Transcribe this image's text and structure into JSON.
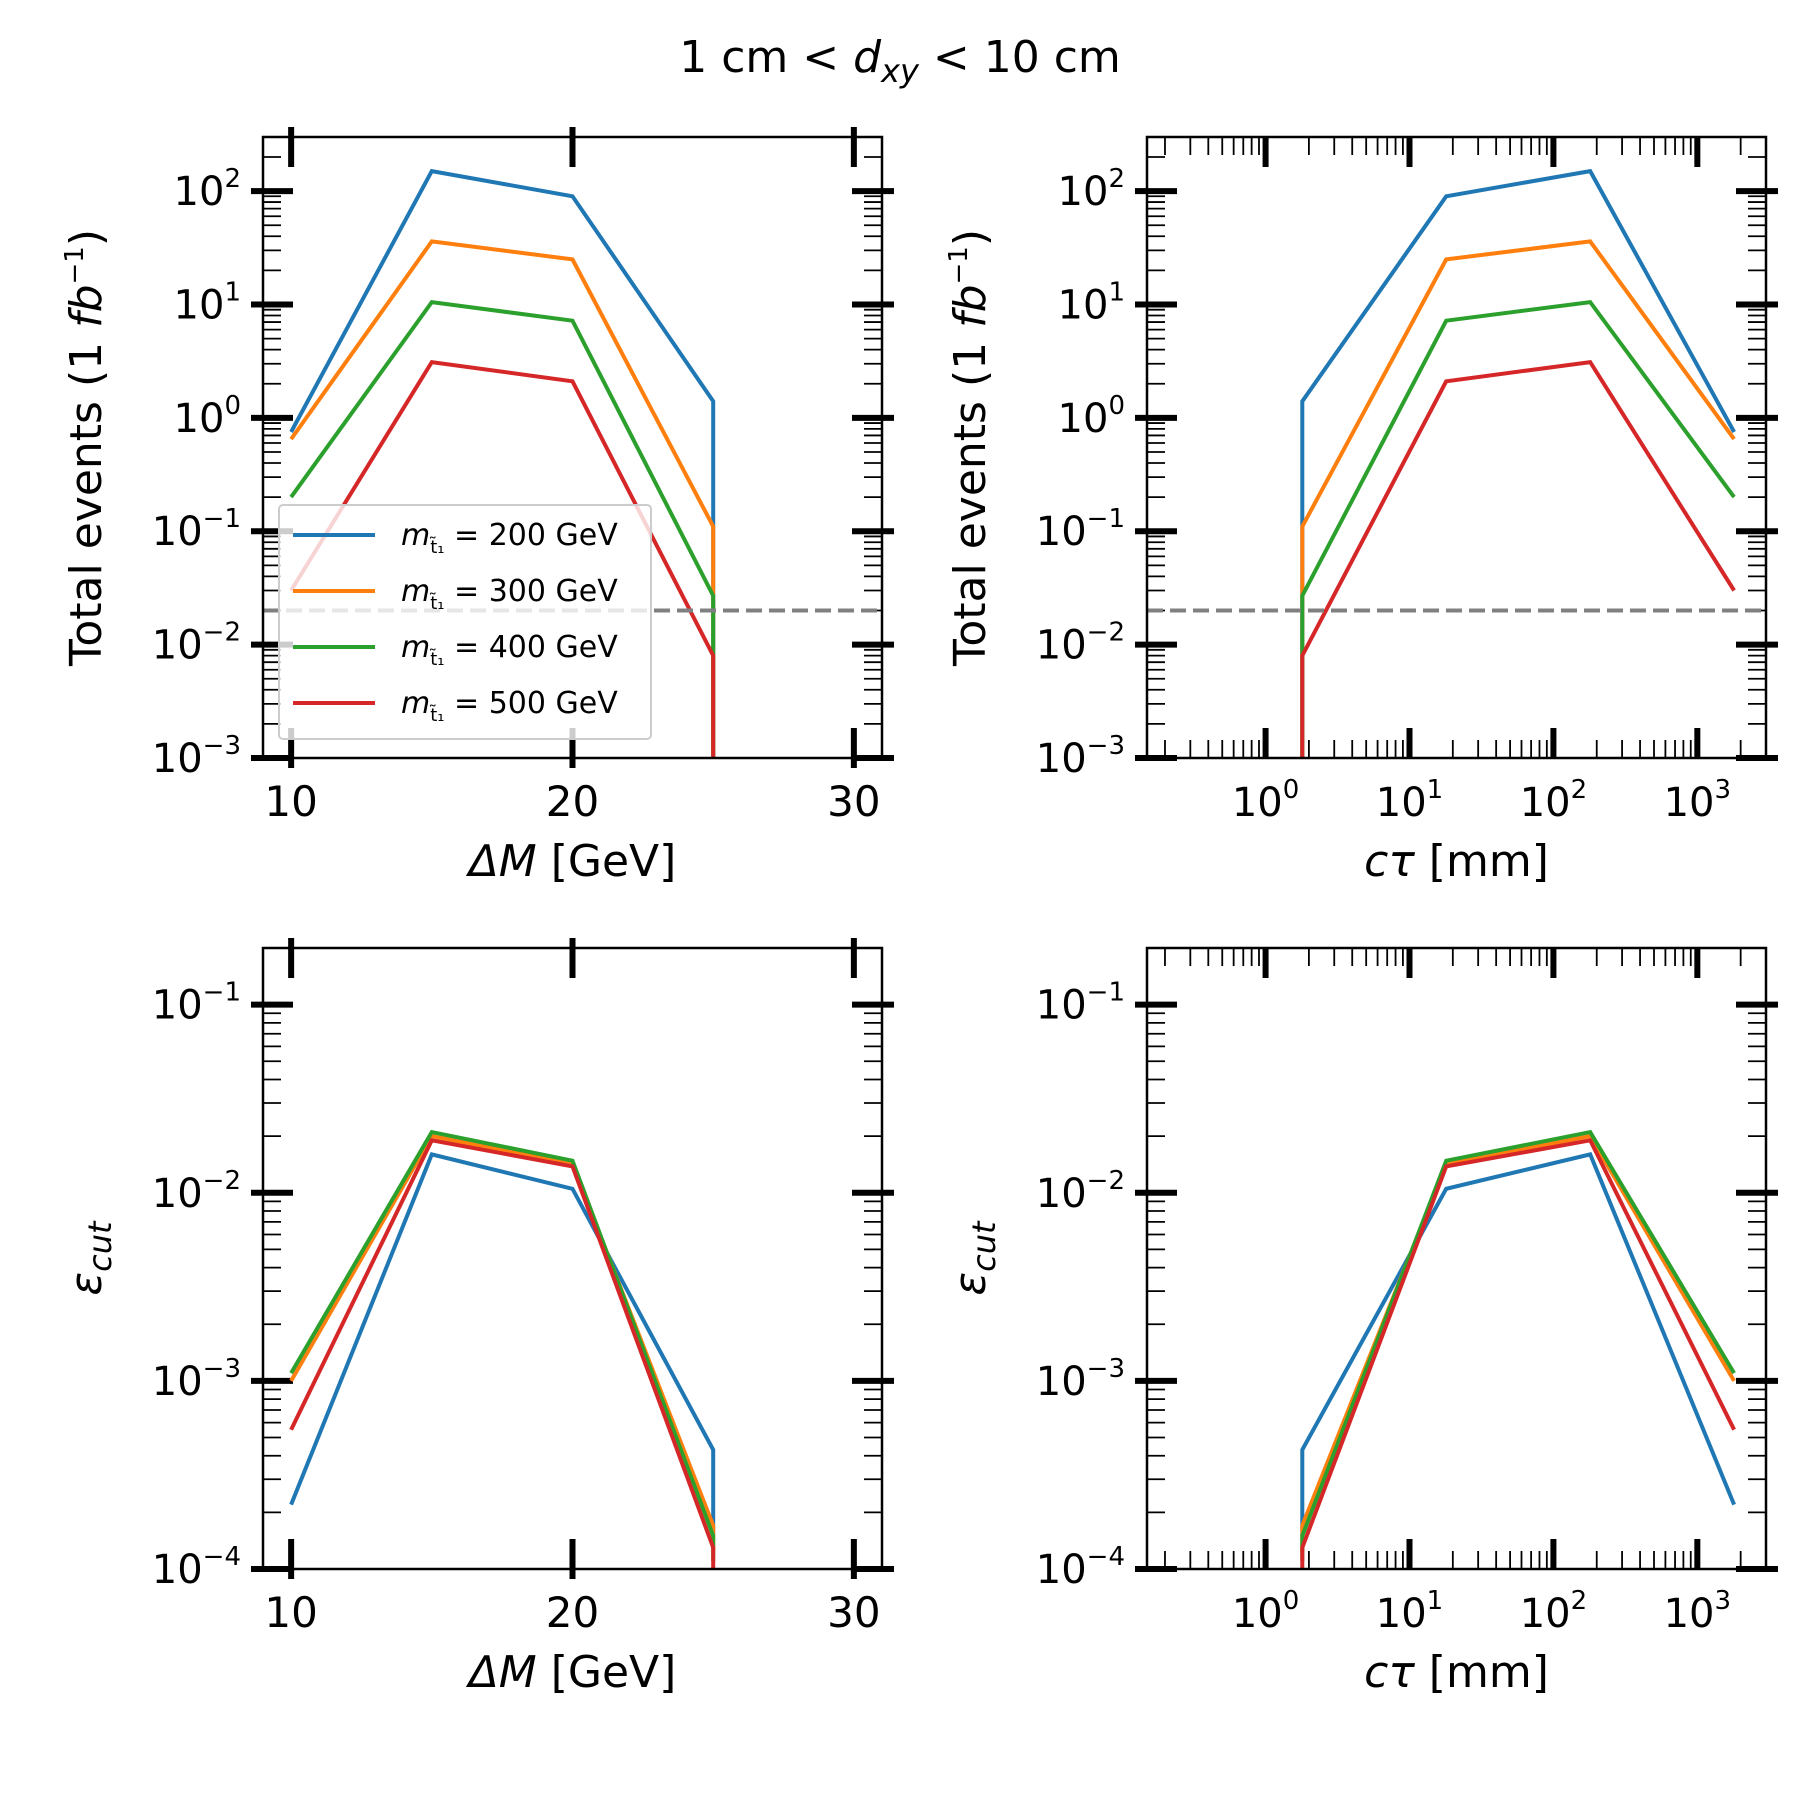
{
  "figure": {
    "title_pre": "1 cm < ",
    "title_var": "d",
    "title_sub": "xy",
    "title_post": " < 10 cm"
  },
  "legend": {
    "m_symbol": "m",
    "m_subscript": "t̃₁",
    "entries": [
      {
        "label": " = 200 GeV",
        "color": "#1f77b4"
      },
      {
        "label": " = 300 GeV",
        "color": "#ff7f0e"
      },
      {
        "label": " = 400 GeV",
        "color": "#2ca02c"
      },
      {
        "label": " = 500 GeV",
        "color": "#d62728"
      }
    ]
  },
  "reference_line": {
    "value": 0.02,
    "color": "#808080",
    "style": "dashed"
  },
  "chart_data": [
    {
      "panel": "top-left",
      "type": "line",
      "xscale": "linear",
      "yscale": "log",
      "xlabel_var": "ΔM",
      "xlabel_unit": " [GeV]",
      "ylabel_text": "Total events (1 ",
      "ylabel_var": "fb",
      "ylabel_sup": "−1",
      "ylabel_close": ")",
      "xlim": [
        9,
        31
      ],
      "ylim": [
        0.001,
        300
      ],
      "xticks": [
        10,
        20,
        30
      ],
      "xticklabels": [
        "10",
        "20",
        "30"
      ],
      "yticks": [
        0.001,
        0.01,
        0.1,
        1,
        10,
        100
      ],
      "ytick_exponents": [
        "−3",
        "−2",
        "−1",
        "0",
        "1",
        "2"
      ],
      "ytick_base": "10",
      "legend": "lower-left",
      "hline": 0.02,
      "x": [
        10,
        15,
        20,
        25,
        25
      ],
      "series": [
        {
          "name": "m = 200 GeV",
          "color": "#1f77b4",
          "values": [
            0.75,
            150,
            90,
            1.4,
            0.0005
          ]
        },
        {
          "name": "m = 300 GeV",
          "color": "#ff7f0e",
          "values": [
            0.65,
            36,
            25,
            0.11,
            0.0005
          ]
        },
        {
          "name": "m = 400 GeV",
          "color": "#2ca02c",
          "values": [
            0.2,
            10.5,
            7.2,
            0.027,
            0.0005
          ]
        },
        {
          "name": "m = 500 GeV",
          "color": "#d62728",
          "values": [
            0.03,
            3.1,
            2.1,
            0.008,
            0.0005
          ]
        }
      ]
    },
    {
      "panel": "top-right",
      "type": "line",
      "xscale": "log",
      "yscale": "log",
      "xlabel_var": "cτ",
      "xlabel_unit": " [mm]",
      "ylabel_text": "Total events (1 ",
      "ylabel_var": "fb",
      "ylabel_sup": "−1",
      "ylabel_close": ")",
      "xlim": [
        0.15,
        3000
      ],
      "ylim": [
        0.001,
        300
      ],
      "xticks": [
        1,
        10,
        100,
        1000
      ],
      "xtick_exponents": [
        "0",
        "1",
        "2",
        "3"
      ],
      "xtick_base": "10",
      "yticks": [
        0.001,
        0.01,
        0.1,
        1,
        10,
        100
      ],
      "ytick_exponents": [
        "−3",
        "−2",
        "−1",
        "0",
        "1",
        "2"
      ],
      "ytick_base": "10",
      "hline": 0.02,
      "x": [
        1.8,
        1.8,
        18,
        180,
        1800
      ],
      "series": [
        {
          "name": "m = 200 GeV",
          "color": "#1f77b4",
          "values": [
            0.0005,
            1.4,
            90,
            150,
            0.75
          ]
        },
        {
          "name": "m = 300 GeV",
          "color": "#ff7f0e",
          "values": [
            0.0005,
            0.11,
            25,
            36,
            0.65
          ]
        },
        {
          "name": "m = 400 GeV",
          "color": "#2ca02c",
          "values": [
            0.0005,
            0.027,
            7.2,
            10.5,
            0.2
          ]
        },
        {
          "name": "m = 500 GeV",
          "color": "#d62728",
          "values": [
            0.0005,
            0.008,
            2.1,
            3.1,
            0.03
          ]
        }
      ]
    },
    {
      "panel": "bottom-left",
      "type": "line",
      "xscale": "linear",
      "yscale": "log",
      "xlabel_var": "ΔM",
      "xlabel_unit": " [GeV]",
      "ylabel_var": "ε",
      "ylabel_sub": "cut",
      "xlim": [
        9,
        31
      ],
      "ylim": [
        0.0001,
        0.2
      ],
      "xticks": [
        10,
        20,
        30
      ],
      "xticklabels": [
        "10",
        "20",
        "30"
      ],
      "yticks": [
        0.0001,
        0.001,
        0.01,
        0.1
      ],
      "ytick_exponents": [
        "−4",
        "−3",
        "−2",
        "−1"
      ],
      "ytick_base": "10",
      "x": [
        10,
        15,
        20,
        25,
        25
      ],
      "series": [
        {
          "name": "m = 200 GeV",
          "color": "#1f77b4",
          "values": [
            0.00022,
            0.016,
            0.0105,
            0.00043,
            0.00015
          ]
        },
        {
          "name": "m = 300 GeV",
          "color": "#ff7f0e",
          "values": [
            0.001,
            0.02,
            0.0142,
            0.00017,
            0.00012
          ]
        },
        {
          "name": "m = 400 GeV",
          "color": "#2ca02c",
          "values": [
            0.0011,
            0.021,
            0.0148,
            0.00015,
            0.00011
          ]
        },
        {
          "name": "m = 500 GeV",
          "color": "#d62728",
          "values": [
            0.00055,
            0.019,
            0.0138,
            0.00013,
            0.0001
          ]
        }
      ]
    },
    {
      "panel": "bottom-right",
      "type": "line",
      "xscale": "log",
      "yscale": "log",
      "xlabel_var": "cτ",
      "xlabel_unit": " [mm]",
      "ylabel_var": "ε",
      "ylabel_sub": "cut",
      "xlim": [
        0.15,
        3000
      ],
      "ylim": [
        0.0001,
        0.2
      ],
      "xticks": [
        1,
        10,
        100,
        1000
      ],
      "xtick_exponents": [
        "0",
        "1",
        "2",
        "3"
      ],
      "xtick_base": "10",
      "yticks": [
        0.0001,
        0.001,
        0.01,
        0.1
      ],
      "ytick_exponents": [
        "−4",
        "−3",
        "−2",
        "−1"
      ],
      "ytick_base": "10",
      "x": [
        1.8,
        1.8,
        18,
        180,
        1800
      ],
      "series": [
        {
          "name": "m = 200 GeV",
          "color": "#1f77b4",
          "values": [
            0.00015,
            0.00043,
            0.0105,
            0.016,
            0.00022
          ]
        },
        {
          "name": "m = 300 GeV",
          "color": "#ff7f0e",
          "values": [
            0.00012,
            0.00017,
            0.0142,
            0.02,
            0.001
          ]
        },
        {
          "name": "m = 400 GeV",
          "color": "#2ca02c",
          "values": [
            0.00011,
            0.00015,
            0.0148,
            0.021,
            0.0011
          ]
        },
        {
          "name": "m = 500 GeV",
          "color": "#d62728",
          "values": [
            0.0001,
            0.00013,
            0.0138,
            0.019,
            0.00055
          ]
        }
      ]
    }
  ]
}
